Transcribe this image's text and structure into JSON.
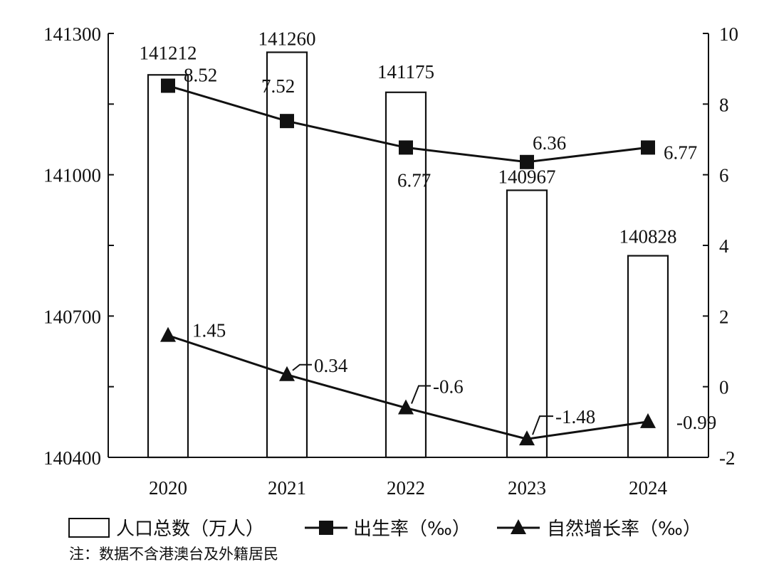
{
  "chart_data": {
    "type": "bar+line",
    "categories": [
      "2020",
      "2021",
      "2022",
      "2023",
      "2024"
    ],
    "series": [
      {
        "name": "人口总数（万人）",
        "kind": "bar",
        "axis": "left",
        "values": [
          141212,
          141260,
          141175,
          140967,
          140828
        ],
        "labels": [
          "141212",
          "141260",
          "141175",
          "140967",
          "140828"
        ]
      },
      {
        "name": "出生率（‰）",
        "kind": "line",
        "marker": "square",
        "axis": "right",
        "values": [
          8.52,
          7.52,
          6.77,
          6.36,
          6.77
        ],
        "labels": [
          "8.52",
          "7.52",
          "6.77",
          "6.36",
          "6.77"
        ]
      },
      {
        "name": "自然增长率（‰）",
        "kind": "line",
        "marker": "triangle",
        "axis": "right",
        "values": [
          1.45,
          0.34,
          -0.6,
          -1.48,
          -0.99
        ],
        "labels": [
          "1.45",
          "0.34",
          "-0.6",
          "-1.48",
          "-0.99"
        ]
      }
    ],
    "left_axis": {
      "ylim": [
        140400,
        141300
      ],
      "ticks": [
        "140400",
        "140700",
        "141000",
        "141300"
      ]
    },
    "right_axis": {
      "ylim": [
        -2,
        10
      ],
      "ticks": [
        "-2",
        "0",
        "2",
        "4",
        "6",
        "8",
        "10"
      ]
    },
    "legend_position": "bottom",
    "grid": false,
    "note": "注：数据不含港澳台及外籍居民"
  }
}
